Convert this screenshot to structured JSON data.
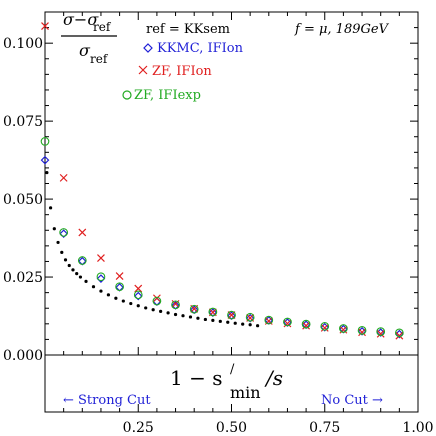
{
  "chart_data": {
    "type": "scatter",
    "xlim": [
      0,
      1
    ],
    "ylim": [
      0,
      0.11
    ],
    "grid": false,
    "x_ticks": [
      "0.25",
      "0.50",
      "0.75",
      "1.00"
    ],
    "y_ticks": [
      "0.000",
      "0.025",
      "0.050",
      "0.075",
      "0.100"
    ],
    "formula": {
      "numerator": "σ−σ",
      "numerator_sub": "ref",
      "denominator": "σ",
      "denominator_sub": "ref"
    },
    "ref_text": "ref = KKsem",
    "energy_text": "f = μ, 189GeV",
    "xlabel": {
      "prefix": "1 − s",
      "prime": "/",
      "sub": "min",
      "suffix": "/s"
    },
    "bottom_left_text": "← Strong Cut",
    "bottom_right_text": "No Cut →",
    "series": [
      {
        "name": "KKMC, IFIon",
        "marker": "diamond",
        "color": "#1f1fd6",
        "x": [
          0.0,
          0.05,
          0.1,
          0.15,
          0.2,
          0.25,
          0.3,
          0.35,
          0.4,
          0.45,
          0.5,
          0.55,
          0.6,
          0.65,
          0.7,
          0.75,
          0.8,
          0.85,
          0.9,
          0.95
        ],
        "values": [
          0.0625,
          0.0389,
          0.0301,
          0.0245,
          0.0217,
          0.0189,
          0.0171,
          0.0159,
          0.0145,
          0.0136,
          0.0126,
          0.0118,
          0.0111,
          0.0104,
          0.0097,
          0.0089,
          0.0083,
          0.0076,
          0.0072,
          0.0067
        ]
      },
      {
        "name": "ZF, IFIon",
        "marker": "x",
        "color": "#e02020",
        "x": [
          0.0,
          0.05,
          0.1,
          0.15,
          0.2,
          0.25,
          0.3,
          0.35,
          0.4,
          0.45,
          0.5,
          0.55,
          0.6,
          0.65,
          0.7,
          0.75,
          0.8,
          0.85,
          0.9,
          0.95
        ],
        "values": [
          0.1055,
          0.0568,
          0.0393,
          0.0311,
          0.0253,
          0.0213,
          0.0182,
          0.0164,
          0.0148,
          0.0137,
          0.0128,
          0.0119,
          0.0109,
          0.0101,
          0.0094,
          0.0087,
          0.0081,
          0.0073,
          0.0068,
          0.0062
        ]
      },
      {
        "name": "ZF, IFIexp",
        "marker": "circle",
        "color": "#22aa22",
        "x": [
          0.0,
          0.05,
          0.1,
          0.15,
          0.2,
          0.25,
          0.3,
          0.35,
          0.4,
          0.45,
          0.5,
          0.55,
          0.6,
          0.65,
          0.7,
          0.75,
          0.8,
          0.85,
          0.9,
          0.95
        ],
        "values": [
          0.0685,
          0.0393,
          0.0303,
          0.0251,
          0.0219,
          0.0193,
          0.0173,
          0.0161,
          0.0147,
          0.0138,
          0.0128,
          0.0121,
          0.0112,
          0.0106,
          0.0099,
          0.0092,
          0.0085,
          0.0079,
          0.0075,
          0.0071
        ]
      }
    ],
    "curve": {
      "marker": "dot",
      "color": "#000000",
      "x": [
        0.005,
        0.015,
        0.025,
        0.035,
        0.045,
        0.055,
        0.065,
        0.075,
        0.085,
        0.095,
        0.11,
        0.13,
        0.15,
        0.17,
        0.19,
        0.21,
        0.23,
        0.25,
        0.27,
        0.29,
        0.31,
        0.33,
        0.35,
        0.37,
        0.39,
        0.41,
        0.43,
        0.45,
        0.47,
        0.49,
        0.51,
        0.53,
        0.55,
        0.57
      ],
      "values": [
        0.0585,
        0.0472,
        0.0405,
        0.0361,
        0.0329,
        0.0305,
        0.0287,
        0.0273,
        0.0261,
        0.025,
        0.0236,
        0.0219,
        0.0205,
        0.0193,
        0.0182,
        0.0173,
        0.0165,
        0.0158,
        0.0151,
        0.0145,
        0.014,
        0.0135,
        0.013,
        0.0126,
        0.0122,
        0.0118,
        0.0114,
        0.0111,
        0.0108,
        0.0105,
        0.0102,
        0.0099,
        0.0097,
        0.0094
      ]
    }
  }
}
